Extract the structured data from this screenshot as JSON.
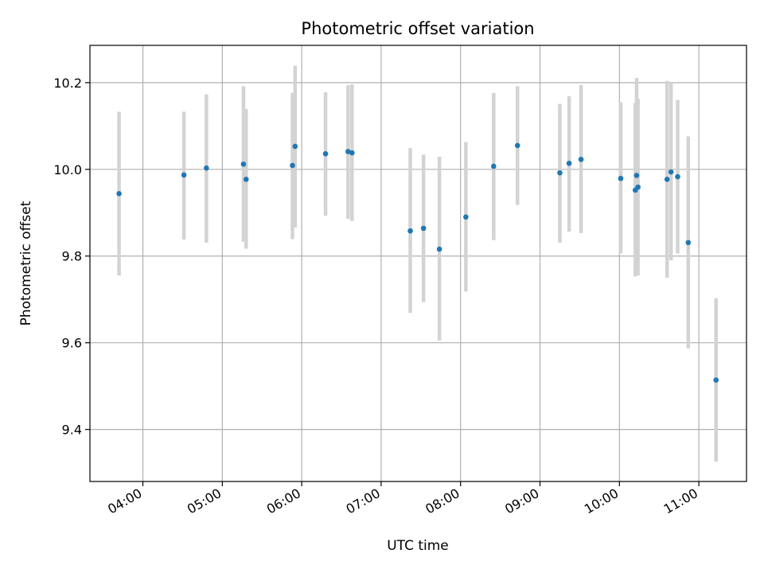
{
  "chart_data": {
    "type": "scatter",
    "title": "Photometric offset variation",
    "xlabel": "UTC time",
    "ylabel": "Photometric offset",
    "xlim": [
      "03:20",
      "11:36"
    ],
    "ylim": [
      9.28,
      10.286
    ],
    "x_ticks": [
      "04:00",
      "05:00",
      "06:00",
      "07:00",
      "08:00",
      "09:00",
      "10:00",
      "11:00"
    ],
    "y_ticks": [
      "9.4",
      "9.6",
      "9.8",
      "10.0",
      "10.2"
    ],
    "grid": true,
    "error_bar_color": "#d3d3d3",
    "point_color": "#1f77b4",
    "points": [
      {
        "x": "03:42",
        "y": 9.944,
        "ylow": 9.755,
        "yhigh": 10.133
      },
      {
        "x": "04:31",
        "y": 9.987,
        "ylow": 9.838,
        "yhigh": 10.133
      },
      {
        "x": "04:48",
        "y": 10.003,
        "ylow": 9.831,
        "yhigh": 10.173
      },
      {
        "x": "05:16",
        "y": 10.012,
        "ylow": 9.833,
        "yhigh": 10.192
      },
      {
        "x": "05:18",
        "y": 9.977,
        "ylow": 9.817,
        "yhigh": 10.139
      },
      {
        "x": "05:53",
        "y": 10.009,
        "ylow": 9.839,
        "yhigh": 10.176
      },
      {
        "x": "05:55",
        "y": 10.053,
        "ylow": 9.866,
        "yhigh": 10.239
      },
      {
        "x": "06:18",
        "y": 10.036,
        "ylow": 9.893,
        "yhigh": 10.178
      },
      {
        "x": "06:35",
        "y": 10.041,
        "ylow": 9.886,
        "yhigh": 10.194
      },
      {
        "x": "06:38",
        "y": 10.038,
        "ylow": 9.881,
        "yhigh": 10.196
      },
      {
        "x": "07:22",
        "y": 9.858,
        "ylow": 9.669,
        "yhigh": 10.049
      },
      {
        "x": "07:32",
        "y": 9.864,
        "ylow": 9.694,
        "yhigh": 10.034
      },
      {
        "x": "07:44",
        "y": 9.816,
        "ylow": 9.605,
        "yhigh": 10.029
      },
      {
        "x": "08:04",
        "y": 9.89,
        "ylow": 9.718,
        "yhigh": 10.063
      },
      {
        "x": "08:25",
        "y": 10.007,
        "ylow": 9.837,
        "yhigh": 10.176
      },
      {
        "x": "08:43",
        "y": 10.055,
        "ylow": 9.918,
        "yhigh": 10.192
      },
      {
        "x": "09:15",
        "y": 9.992,
        "ylow": 9.831,
        "yhigh": 10.151
      },
      {
        "x": "09:22",
        "y": 10.014,
        "ylow": 9.856,
        "yhigh": 10.169
      },
      {
        "x": "09:31",
        "y": 10.023,
        "ylow": 9.853,
        "yhigh": 10.195
      },
      {
        "x": "10:01",
        "y": 9.979,
        "ylow": 9.806,
        "yhigh": 10.155
      },
      {
        "x": "10:12",
        "y": 9.952,
        "ylow": 9.753,
        "yhigh": 10.153
      },
      {
        "x": "10:13",
        "y": 9.986,
        "ylow": 9.76,
        "yhigh": 10.211
      },
      {
        "x": "10:14",
        "y": 9.959,
        "ylow": 9.755,
        "yhigh": 10.163
      },
      {
        "x": "10:36",
        "y": 9.977,
        "ylow": 9.75,
        "yhigh": 10.204
      },
      {
        "x": "10:39",
        "y": 9.994,
        "ylow": 9.79,
        "yhigh": 10.2
      },
      {
        "x": "10:44",
        "y": 9.983,
        "ylow": 9.806,
        "yhigh": 10.16
      },
      {
        "x": "10:52",
        "y": 9.831,
        "ylow": 9.587,
        "yhigh": 10.076
      },
      {
        "x": "11:13",
        "y": 9.514,
        "ylow": 9.326,
        "yhigh": 9.703
      }
    ]
  }
}
